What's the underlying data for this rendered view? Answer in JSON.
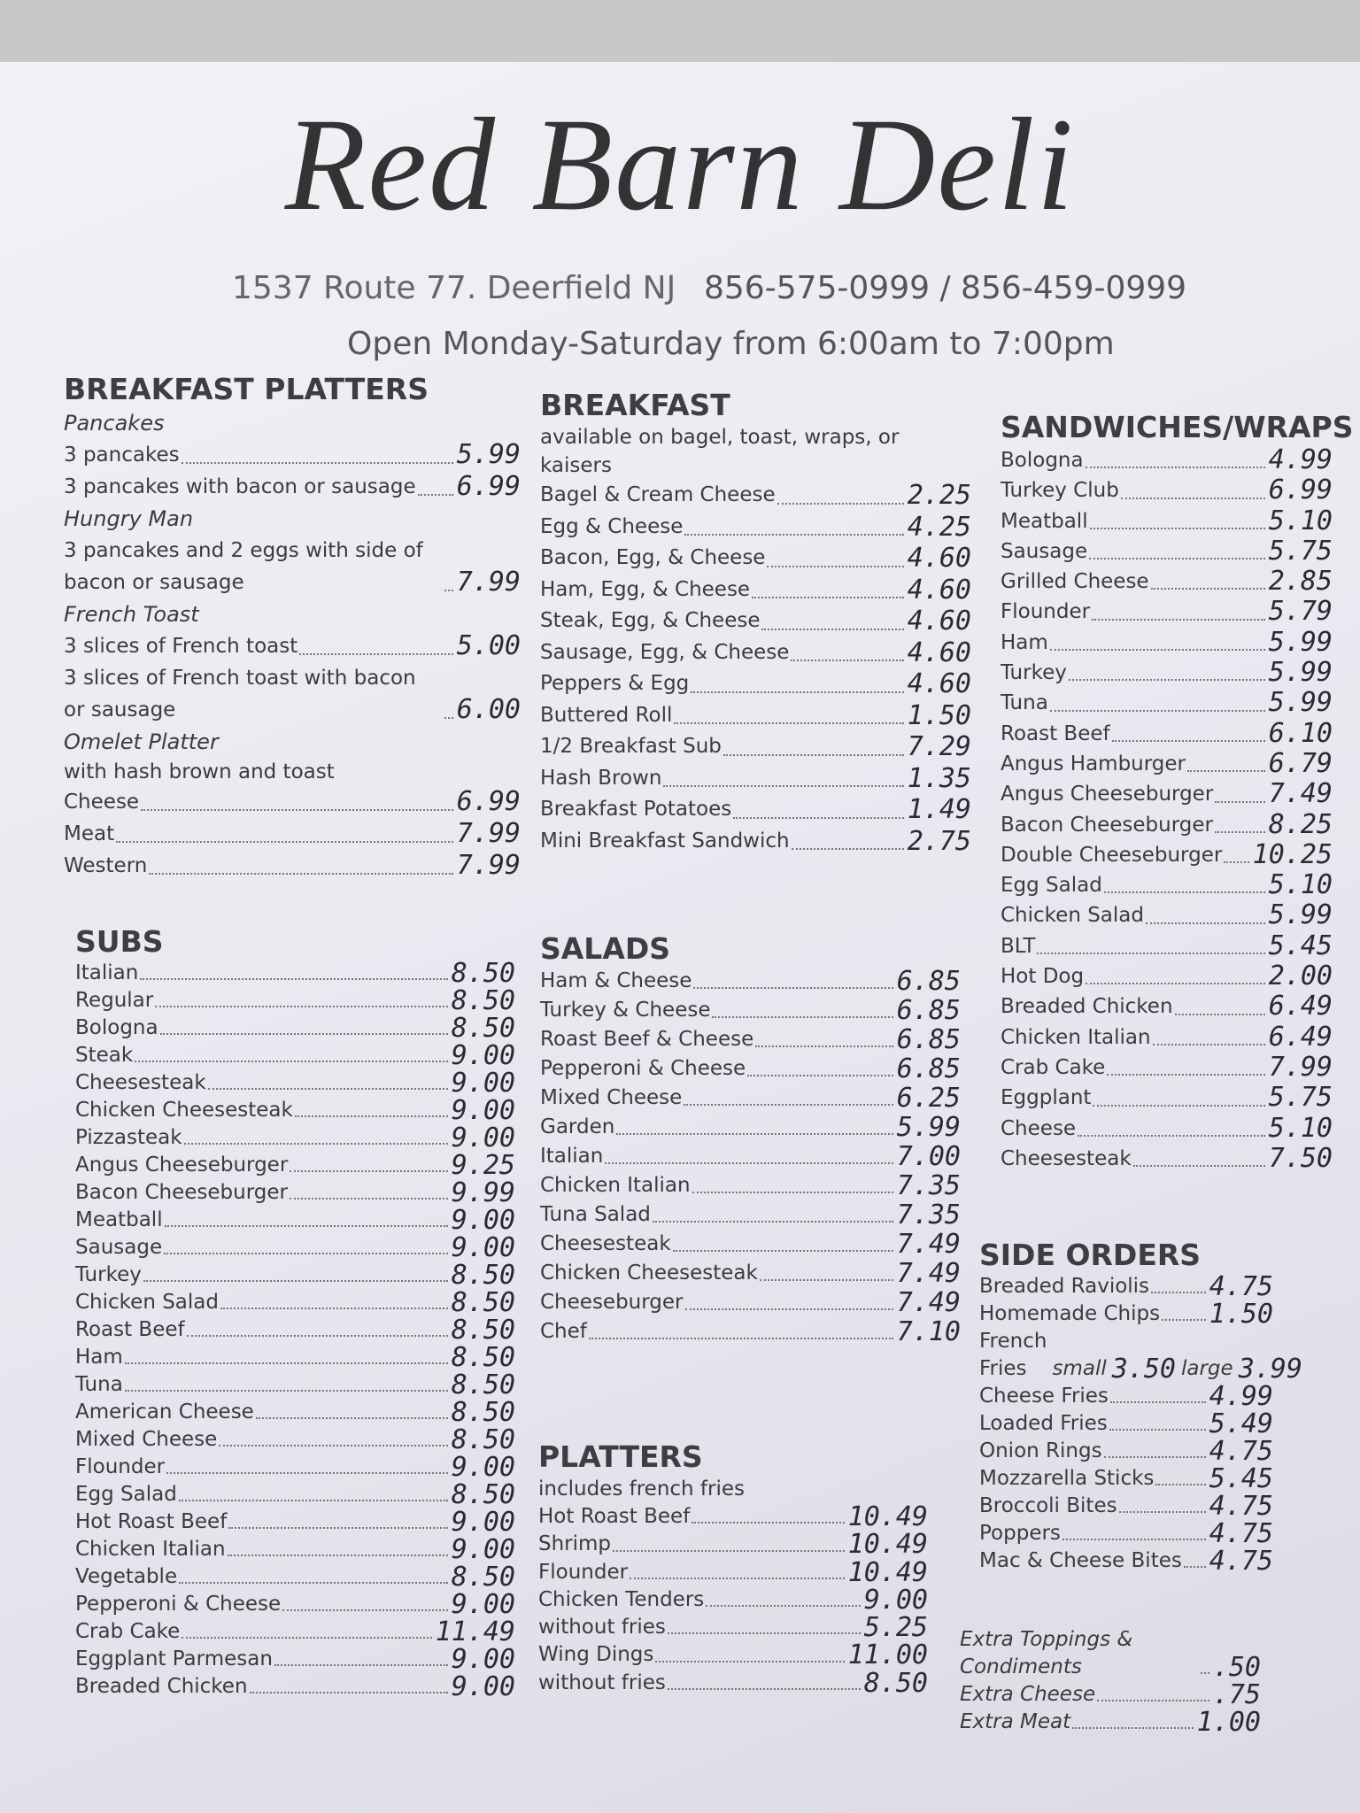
{
  "header": {
    "title": "Red Barn Deli",
    "address": "1537 Route 77. Deerfield NJ",
    "phone": "856-575-0999 / 856-459-0999",
    "hours": "Open Monday-Saturday from 6:00am to 7:00pm"
  },
  "sections": [
    {
      "title": "BREAKFAST PLATTERS",
      "groups": [
        {
          "heading": "Pancakes",
          "items": [
            {
              "name": "3 pancakes",
              "price": "5.99"
            },
            {
              "name": "3 pancakes with bacon or sausage",
              "price": "6.99"
            }
          ]
        },
        {
          "heading": "Hungry Man",
          "items": [
            {
              "name": "3 pancakes and 2 eggs with side of bacon or sausage",
              "price": "7.99"
            }
          ]
        },
        {
          "heading": "French Toast",
          "items": [
            {
              "name": "3 slices of French toast",
              "price": "5.00"
            },
            {
              "name": "3 slices of French toast with bacon or sausage",
              "price": "6.00"
            }
          ]
        },
        {
          "heading": "Omelet Platter",
          "note": "with hash brown and toast",
          "items": [
            {
              "name": "Cheese",
              "price": "6.99"
            },
            {
              "name": "Meat",
              "price": "7.99"
            },
            {
              "name": "Western",
              "price": "7.99"
            }
          ]
        }
      ]
    },
    {
      "title": "BREAKFAST",
      "note": "available on bagel, toast, wraps, or kaisers",
      "items": [
        {
          "name": "Bagel & Cream Cheese",
          "price": "2.25"
        },
        {
          "name": "Egg & Cheese",
          "price": "4.25"
        },
        {
          "name": "Bacon, Egg, & Cheese",
          "price": "4.60"
        },
        {
          "name": "Ham, Egg, & Cheese",
          "price": "4.60"
        },
        {
          "name": "Steak, Egg, & Cheese",
          "price": "4.60"
        },
        {
          "name": "Sausage, Egg, & Cheese",
          "price": "4.60"
        },
        {
          "name": "Peppers & Egg",
          "price": "4.60"
        },
        {
          "name": "Buttered Roll",
          "price": "1.50"
        },
        {
          "name": "1/2 Breakfast Sub",
          "price": "7.29"
        },
        {
          "name": "Hash Brown",
          "price": "1.35"
        },
        {
          "name": "Breakfast Potatoes",
          "price": "1.49"
        },
        {
          "name": "Mini Breakfast Sandwich",
          "price": "2.75"
        }
      ]
    },
    {
      "title": "SANDWICHES/WRAPS",
      "items": [
        {
          "name": "Bologna",
          "price": "4.99"
        },
        {
          "name": "Turkey Club",
          "price": "6.99"
        },
        {
          "name": "Meatball",
          "price": "5.10"
        },
        {
          "name": "Sausage",
          "price": "5.75"
        },
        {
          "name": "Grilled Cheese",
          "price": "2.85"
        },
        {
          "name": "Flounder",
          "price": "5.79"
        },
        {
          "name": "Ham",
          "price": "5.99"
        },
        {
          "name": "Turkey",
          "price": "5.99"
        },
        {
          "name": "Tuna",
          "price": "5.99"
        },
        {
          "name": "Roast Beef",
          "price": "6.10"
        },
        {
          "name": "Angus Hamburger",
          "price": "6.79"
        },
        {
          "name": "Angus Cheeseburger",
          "price": "7.49"
        },
        {
          "name": "Bacon Cheeseburger",
          "price": "8.25"
        },
        {
          "name": "Double Cheeseburger",
          "price": "10.25"
        },
        {
          "name": "Egg Salad",
          "price": "5.10"
        },
        {
          "name": "Chicken Salad",
          "price": "5.99"
        },
        {
          "name": "BLT",
          "price": "5.45"
        },
        {
          "name": "Hot Dog",
          "price": "2.00"
        },
        {
          "name": "Breaded Chicken",
          "price": "6.49"
        },
        {
          "name": "Chicken Italian",
          "price": "6.49"
        },
        {
          "name": "Crab Cake",
          "price": "7.99"
        },
        {
          "name": "Eggplant",
          "price": "5.75"
        },
        {
          "name": "Cheese",
          "price": "5.10"
        },
        {
          "name": "Cheesesteak",
          "price": "7.50"
        }
      ]
    },
    {
      "title": "SUBS",
      "items": [
        {
          "name": "Italian",
          "price": "8.50"
        },
        {
          "name": "Regular",
          "price": "8.50"
        },
        {
          "name": "Bologna",
          "price": "8.50"
        },
        {
          "name": "Steak",
          "price": "9.00"
        },
        {
          "name": "Cheesesteak",
          "price": "9.00"
        },
        {
          "name": "Chicken Cheesesteak",
          "price": "9.00"
        },
        {
          "name": "Pizzasteak",
          "price": "9.00"
        },
        {
          "name": "Angus Cheeseburger",
          "price": "9.25"
        },
        {
          "name": "Bacon Cheeseburger",
          "price": "9.99"
        },
        {
          "name": "Meatball",
          "price": "9.00"
        },
        {
          "name": "Sausage",
          "price": "9.00"
        },
        {
          "name": "Turkey",
          "price": "8.50"
        },
        {
          "name": "Chicken Salad",
          "price": "8.50"
        },
        {
          "name": "Roast Beef",
          "price": "8.50"
        },
        {
          "name": "Ham",
          "price": "8.50"
        },
        {
          "name": "Tuna",
          "price": "8.50"
        },
        {
          "name": "American Cheese",
          "price": "8.50"
        },
        {
          "name": "Mixed Cheese",
          "price": "8.50"
        },
        {
          "name": "Flounder",
          "price": "9.00"
        },
        {
          "name": "Egg Salad",
          "price": "8.50"
        },
        {
          "name": "Hot Roast Beef",
          "price": "9.00"
        },
        {
          "name": "Chicken Italian",
          "price": "9.00"
        },
        {
          "name": "Vegetable",
          "price": "8.50"
        },
        {
          "name": "Pepperoni & Cheese",
          "price": "9.00"
        },
        {
          "name": "Crab Cake",
          "price": "11.49"
        },
        {
          "name": "Eggplant Parmesan",
          "price": "9.00"
        },
        {
          "name": "Breaded Chicken",
          "price": "9.00"
        }
      ]
    },
    {
      "title": "SALADS",
      "items": [
        {
          "name": "Ham & Cheese",
          "price": "6.85"
        },
        {
          "name": "Turkey & Cheese",
          "price": "6.85"
        },
        {
          "name": "Roast Beef & Cheese",
          "price": "6.85"
        },
        {
          "name": "Pepperoni & Cheese",
          "price": "6.85"
        },
        {
          "name": "Mixed Cheese",
          "price": "6.25"
        },
        {
          "name": "Garden",
          "price": "5.99"
        },
        {
          "name": "Italian",
          "price": "7.00"
        },
        {
          "name": "Chicken Italian",
          "price": "7.35"
        },
        {
          "name": "Tuna Salad",
          "price": "7.35"
        },
        {
          "name": "Cheesesteak",
          "price": "7.49"
        },
        {
          "name": "Chicken Cheesesteak",
          "price": "7.49"
        },
        {
          "name": "Cheeseburger",
          "price": "7.49"
        },
        {
          "name": "Chef",
          "price": "7.10"
        }
      ]
    },
    {
      "title": "PLATTERS",
      "note": "includes french fries",
      "items": [
        {
          "name": "Hot Roast Beef",
          "price": "10.49"
        },
        {
          "name": "Shrimp",
          "price": "10.49"
        },
        {
          "name": "Flounder",
          "price": "10.49"
        },
        {
          "name": "Chicken Tenders",
          "price": "9.00"
        },
        {
          "name": "without fries",
          "price": "5.25"
        },
        {
          "name": "Wing Dings",
          "price": "11.00"
        },
        {
          "name": "without fries",
          "price": "8.50"
        }
      ]
    },
    {
      "title": "SIDE ORDERS",
      "items": [
        {
          "name": "Breaded Raviolis",
          "price": "4.75"
        },
        {
          "name": "Homemade Chips",
          "price": "1.50"
        },
        {
          "name": "French Fries",
          "sizes": [
            {
              "name": "small",
              "price": "3.50"
            },
            {
              "name": "large",
              "price": "3.99"
            }
          ]
        },
        {
          "name": "Cheese Fries",
          "price": "4.99"
        },
        {
          "name": "Loaded Fries",
          "price": "5.49"
        },
        {
          "name": "Onion Rings",
          "price": "4.75"
        },
        {
          "name": "Mozzarella Sticks",
          "price": "5.45"
        },
        {
          "name": "Broccoli Bites",
          "price": "4.75"
        },
        {
          "name": "Poppers",
          "price": "4.75"
        },
        {
          "name": "Mac & Cheese Bites",
          "price": "4.75"
        }
      ]
    },
    {
      "items": [
        {
          "name": "Extra Toppings & Condiments",
          "price": ".50"
        },
        {
          "name": "Extra Cheese",
          "price": ".75"
        },
        {
          "name": "Extra Meat",
          "price": "1.00"
        }
      ]
    }
  ]
}
